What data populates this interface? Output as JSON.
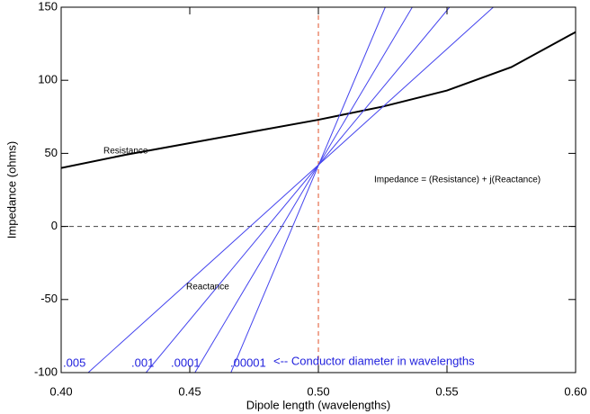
{
  "chart_data": {
    "type": "line",
    "x_label": "Dipole length (wavelengths)",
    "y_label": "Impedance (ohms)",
    "xlim": [
      0.4,
      0.6
    ],
    "ylim": [
      -100,
      150
    ],
    "xticks": [
      {
        "value": 0.4,
        "label": "0.40"
      },
      0.45,
      {
        "value": 0.5,
        "label": "0.50"
      },
      0.55,
      {
        "value": 0.6,
        "label": "0.60"
      }
    ],
    "yticks": [
      -100,
      -50,
      0,
      50,
      100,
      150
    ],
    "vlines": [
      0.5
    ],
    "vline_color": "#e0502a",
    "hlines": [
      0
    ],
    "hline_color": "#444444",
    "series": [
      {
        "name": "Resistance",
        "color": "#000000",
        "x": [
          0.4,
          0.425,
          0.45,
          0.475,
          0.5,
          0.525,
          0.55,
          0.575,
          0.6
        ],
        "values": [
          40,
          49,
          57,
          65,
          73,
          82,
          93,
          109,
          133
        ]
      },
      {
        "name": ".005",
        "color": "#4444ee",
        "x": [
          0.4105,
          0.568
        ],
        "values": [
          -100,
          150
        ]
      },
      {
        "name": ".001",
        "color": "#4444ee",
        "x": [
          0.433,
          0.551
        ],
        "values": [
          -100,
          150
        ]
      },
      {
        "name": ".0001",
        "color": "#4444ee",
        "x": [
          0.452,
          0.5365
        ],
        "values": [
          -100,
          150
        ]
      },
      {
        "name": ".00001",
        "color": "#4444ee",
        "x": [
          0.466,
          0.526
        ],
        "values": [
          -100,
          150
        ]
      }
    ],
    "annotations": [
      "Reactance",
      "Impedance = (Resistance) + j(Reactance)",
      "<-- Conductor diameter in wavelengths"
    ]
  }
}
